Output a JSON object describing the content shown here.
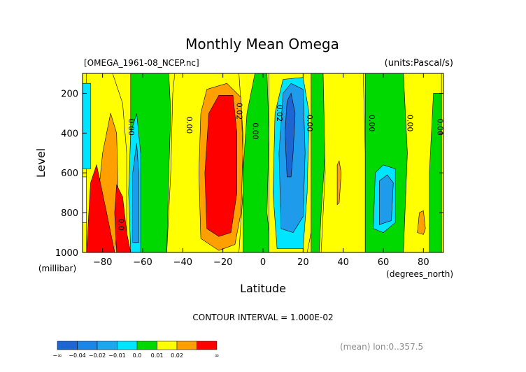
{
  "chart_data": {
    "type": "heatmap",
    "title": "Monthly Mean Omega",
    "file_label": "[OMEGA_1961-08_NCEP.nc]",
    "units_label": "(units:Pascal/s)",
    "xlabel": "Latitude",
    "x_unit": "(degrees_north)",
    "ylabel": "Level",
    "y_unit": "(millibar)",
    "xlim": [
      -90,
      90
    ],
    "ylim": [
      1000,
      100
    ],
    "y_reversed": true,
    "x_ticks": [
      -80,
      -60,
      -40,
      -20,
      0,
      20,
      40,
      60,
      80
    ],
    "x_tick_labels": [
      "−80",
      "−60",
      "−40",
      "−20",
      "0",
      "20",
      "40",
      "60",
      "80"
    ],
    "y_ticks": [
      200,
      400,
      600,
      800,
      1000
    ],
    "y_tick_labels": [
      "200",
      "400",
      "600",
      "800",
      "1000"
    ],
    "contour_interval_label": "CONTOUR INTERVAL = 1.000E-02",
    "subtitle_right": "(mean) lon:0..357.5",
    "contour_labels": [
      {
        "text": "0.00",
        "lat": -67,
        "lev": 370
      },
      {
        "text": "0.00",
        "lat": -38,
        "lev": 360
      },
      {
        "text": "0.02",
        "lat": -13,
        "lev": 290
      },
      {
        "text": "0.00",
        "lat": -5,
        "lev": 390
      },
      {
        "text": "0.02",
        "lat": 7,
        "lev": 300
      },
      {
        "text": "0.00",
        "lat": 22,
        "lev": 350
      },
      {
        "text": "0.00",
        "lat": 53,
        "lev": 350
      },
      {
        "text": "0.00",
        "lat": 72,
        "lev": 350
      },
      {
        "text": "0.00",
        "lat": 87,
        "lev": 370
      },
      {
        "text": "0.0",
        "lat": -72,
        "lev": 860
      }
    ],
    "levels": [
      {
        "label": "−∞",
        "color": "#1c65d3"
      },
      {
        "label": "−0.04",
        "color": "#1c65d3"
      },
      {
        "label": "−0.02",
        "color": "#1e9bea"
      },
      {
        "label": "−0.01",
        "color": "#00e5ff"
      },
      {
        "label": "0.0",
        "color": "#00d900"
      },
      {
        "label": "0.01",
        "color": "#ffff00"
      },
      {
        "label": "0.02",
        "color": "#ffa000"
      },
      {
        "label": "∞",
        "color": "#ff0000"
      }
    ],
    "colorbar": [
      {
        "lo": "-inf",
        "hi": -0.04,
        "color": "#1c65d3"
      },
      {
        "lo": -0.04,
        "hi": -0.03,
        "color": "#1a86e8"
      },
      {
        "lo": -0.03,
        "hi": -0.02,
        "color": "#1aa7ee"
      },
      {
        "lo": -0.02,
        "hi": -0.01,
        "color": "#00e5ff"
      },
      {
        "lo": -0.01,
        "hi": 0.0,
        "color": "#00d900"
      },
      {
        "lo": 0.0,
        "hi": 0.01,
        "color": "#ffff00"
      },
      {
        "lo": 0.01,
        "hi": 0.02,
        "color": "#ffa000"
      },
      {
        "lo": 0.02,
        "hi": "inf",
        "color": "#ff0000"
      }
    ],
    "colorbar_tick_labels": [
      "−∞",
      "−0.04",
      "−0.02",
      "−0.01",
      "0.0",
      "0.01",
      "0.02",
      "∞"
    ],
    "regions": [
      {
        "name": "yellow-sh-polar",
        "color": "#ffff00",
        "pts": [
          [
            -88,
            1000
          ],
          [
            -88,
            100
          ],
          [
            -75,
            100
          ],
          [
            -70,
            250
          ],
          [
            -68,
            500
          ],
          [
            -68,
            1000
          ]
        ]
      },
      {
        "name": "green-sh-60",
        "color": "#00d900",
        "pts": [
          [
            -66,
            1000
          ],
          [
            -66,
            100
          ],
          [
            -47,
            100
          ],
          [
            -46,
            300
          ],
          [
            -47,
            600
          ],
          [
            -48,
            1000
          ]
        ]
      },
      {
        "name": "yellow-sh-40",
        "color": "#ffff00",
        "pts": [
          [
            -48,
            1000
          ],
          [
            -46,
            600
          ],
          [
            -45,
            200
          ],
          [
            -44,
            100
          ],
          [
            -12,
            100
          ],
          [
            -10,
            400
          ],
          [
            -10,
            700
          ],
          [
            -12,
            1000
          ]
        ]
      },
      {
        "name": "orange-sh-20",
        "color": "#ffa000",
        "pts": [
          [
            -31,
            930
          ],
          [
            -32,
            600
          ],
          [
            -31,
            300
          ],
          [
            -28,
            180
          ],
          [
            -18,
            150
          ],
          [
            -11,
            220
          ],
          [
            -10,
            500
          ],
          [
            -11,
            800
          ],
          [
            -14,
            960
          ],
          [
            -22,
            990
          ]
        ]
      },
      {
        "name": "red-sh-20",
        "color": "#ff0000",
        "pts": [
          [
            -28,
            880
          ],
          [
            -29,
            600
          ],
          [
            -27,
            300
          ],
          [
            -22,
            210
          ],
          [
            -15,
            210
          ],
          [
            -13,
            400
          ],
          [
            -13,
            700
          ],
          [
            -16,
            900
          ],
          [
            -22,
            920
          ]
        ]
      },
      {
        "name": "green-eq",
        "color": "#00d900",
        "pts": [
          [
            -10,
            1000
          ],
          [
            -10,
            600
          ],
          [
            -8,
            300
          ],
          [
            -4,
            100
          ],
          [
            2,
            100
          ],
          [
            3,
            400
          ],
          [
            2,
            800
          ],
          [
            4,
            1000
          ]
        ]
      },
      {
        "name": "yellow-nh-10",
        "color": "#ffff00",
        "pts": [
          [
            3,
            1000
          ],
          [
            3,
            100
          ],
          [
            24,
            100
          ],
          [
            24,
            900
          ],
          [
            22,
            1000
          ]
        ]
      },
      {
        "name": "cyan-nh-10",
        "color": "#00e5ff",
        "pts": [
          [
            7,
            980
          ],
          [
            5,
            700
          ],
          [
            6,
            300
          ],
          [
            10,
            130
          ],
          [
            20,
            120
          ],
          [
            23,
            300
          ],
          [
            22,
            700
          ],
          [
            20,
            980
          ]
        ]
      },
      {
        "name": "blue-nh-10",
        "color": "#1e9bea",
        "pts": [
          [
            9,
            880
          ],
          [
            8,
            500
          ],
          [
            10,
            200
          ],
          [
            14,
            150
          ],
          [
            20,
            180
          ],
          [
            21,
            500
          ],
          [
            20,
            820
          ],
          [
            15,
            900
          ]
        ]
      },
      {
        "name": "darkblue-nh-10",
        "color": "#1c65d3",
        "pts": [
          [
            12,
            620
          ],
          [
            11,
            400
          ],
          [
            12,
            240
          ],
          [
            14,
            200
          ],
          [
            16,
            300
          ],
          [
            15,
            500
          ],
          [
            14,
            620
          ]
        ]
      },
      {
        "name": "green-nh-25",
        "color": "#00d900",
        "pts": [
          [
            24,
            1000
          ],
          [
            24,
            100
          ],
          [
            30,
            100
          ],
          [
            31,
            500
          ],
          [
            29,
            800
          ],
          [
            28,
            1000
          ]
        ]
      },
      {
        "name": "yellow-nh-40",
        "color": "#ffff00",
        "pts": [
          [
            29,
            1000
          ],
          [
            31,
            600
          ],
          [
            30,
            100
          ],
          [
            50,
            100
          ],
          [
            51,
            500
          ],
          [
            51,
            1000
          ]
        ]
      },
      {
        "name": "green-nh-60",
        "color": "#00d900",
        "pts": [
          [
            51,
            1000
          ],
          [
            51,
            100
          ],
          [
            70,
            100
          ],
          [
            72,
            500
          ],
          [
            70,
            1000
          ]
        ]
      },
      {
        "name": "cyan-nh-60",
        "color": "#00e5ff",
        "pts": [
          [
            55,
            880
          ],
          [
            56,
            600
          ],
          [
            60,
            560
          ],
          [
            66,
            580
          ],
          [
            66,
            850
          ],
          [
            60,
            900
          ]
        ]
      },
      {
        "name": "blue-nh-60",
        "color": "#1e9bea",
        "pts": [
          [
            58,
            860
          ],
          [
            58,
            640
          ],
          [
            62,
            610
          ],
          [
            65,
            650
          ],
          [
            64,
            840
          ]
        ]
      },
      {
        "name": "yellow-nh-80",
        "color": "#ffff00",
        "pts": [
          [
            70,
            1000
          ],
          [
            72,
            500
          ],
          [
            70,
            100
          ],
          [
            89,
            100
          ],
          [
            89,
            1000
          ]
        ]
      },
      {
        "name": "green-nh-85",
        "color": "#00d900",
        "pts": [
          [
            83,
            1000
          ],
          [
            83,
            600
          ],
          [
            85,
            200
          ],
          [
            89,
            200
          ],
          [
            89,
            1000
          ]
        ]
      },
      {
        "name": "orange-sh-75",
        "color": "#ffa000",
        "pts": [
          [
            -84,
            900
          ],
          [
            -80,
            500
          ],
          [
            -76,
            300
          ],
          [
            -73,
            400
          ],
          [
            -72,
            800
          ],
          [
            -74,
            1000
          ],
          [
            -80,
            1000
          ]
        ]
      },
      {
        "name": "red-sh-80",
        "color": "#ff0000",
        "pts": [
          [
            -88,
            1000
          ],
          [
            -86,
            650
          ],
          [
            -83,
            560
          ],
          [
            -78,
            800
          ],
          [
            -74,
            1000
          ]
        ]
      },
      {
        "name": "red-sh-70",
        "color": "#ff0000",
        "pts": [
          [
            -73,
            1000
          ],
          [
            -74,
            800
          ],
          [
            -73,
            660
          ],
          [
            -70,
            720
          ],
          [
            -68,
            900
          ],
          [
            -66,
            1000
          ]
        ]
      },
      {
        "name": "cyan-sh-65",
        "color": "#00e5ff",
        "pts": [
          [
            -66,
            1000
          ],
          [
            -67,
            700
          ],
          [
            -66,
            400
          ],
          [
            -63,
            300
          ],
          [
            -61,
            500
          ],
          [
            -61,
            1000
          ]
        ]
      },
      {
        "name": "blue-sh-65",
        "color": "#1e9bea",
        "pts": [
          [
            -65,
            950
          ],
          [
            -65,
            600
          ],
          [
            -63,
            450
          ],
          [
            -62,
            600
          ],
          [
            -62,
            950
          ]
        ]
      },
      {
        "name": "cyan-sh-88",
        "color": "#00e5ff",
        "pts": [
          [
            -90,
            580
          ],
          [
            -90,
            150
          ],
          [
            -86,
            150
          ],
          [
            -86,
            580
          ]
        ]
      },
      {
        "name": "white-sh-88",
        "color": "#ffffff",
        "pts": [
          [
            -90,
            850
          ],
          [
            -90,
            620
          ],
          [
            -88,
            620
          ],
          [
            -88,
            850
          ]
        ]
      },
      {
        "name": "orange-nh-38",
        "color": "#ffa000",
        "pts": [
          [
            37,
            760
          ],
          [
            37,
            560
          ],
          [
            38,
            540
          ],
          [
            39,
            600
          ],
          [
            38,
            750
          ]
        ]
      },
      {
        "name": "orange-nh-80",
        "color": "#ffa000",
        "pts": [
          [
            77,
            900
          ],
          [
            78,
            800
          ],
          [
            80,
            790
          ],
          [
            81,
            880
          ],
          [
            80,
            910
          ]
        ]
      }
    ]
  }
}
